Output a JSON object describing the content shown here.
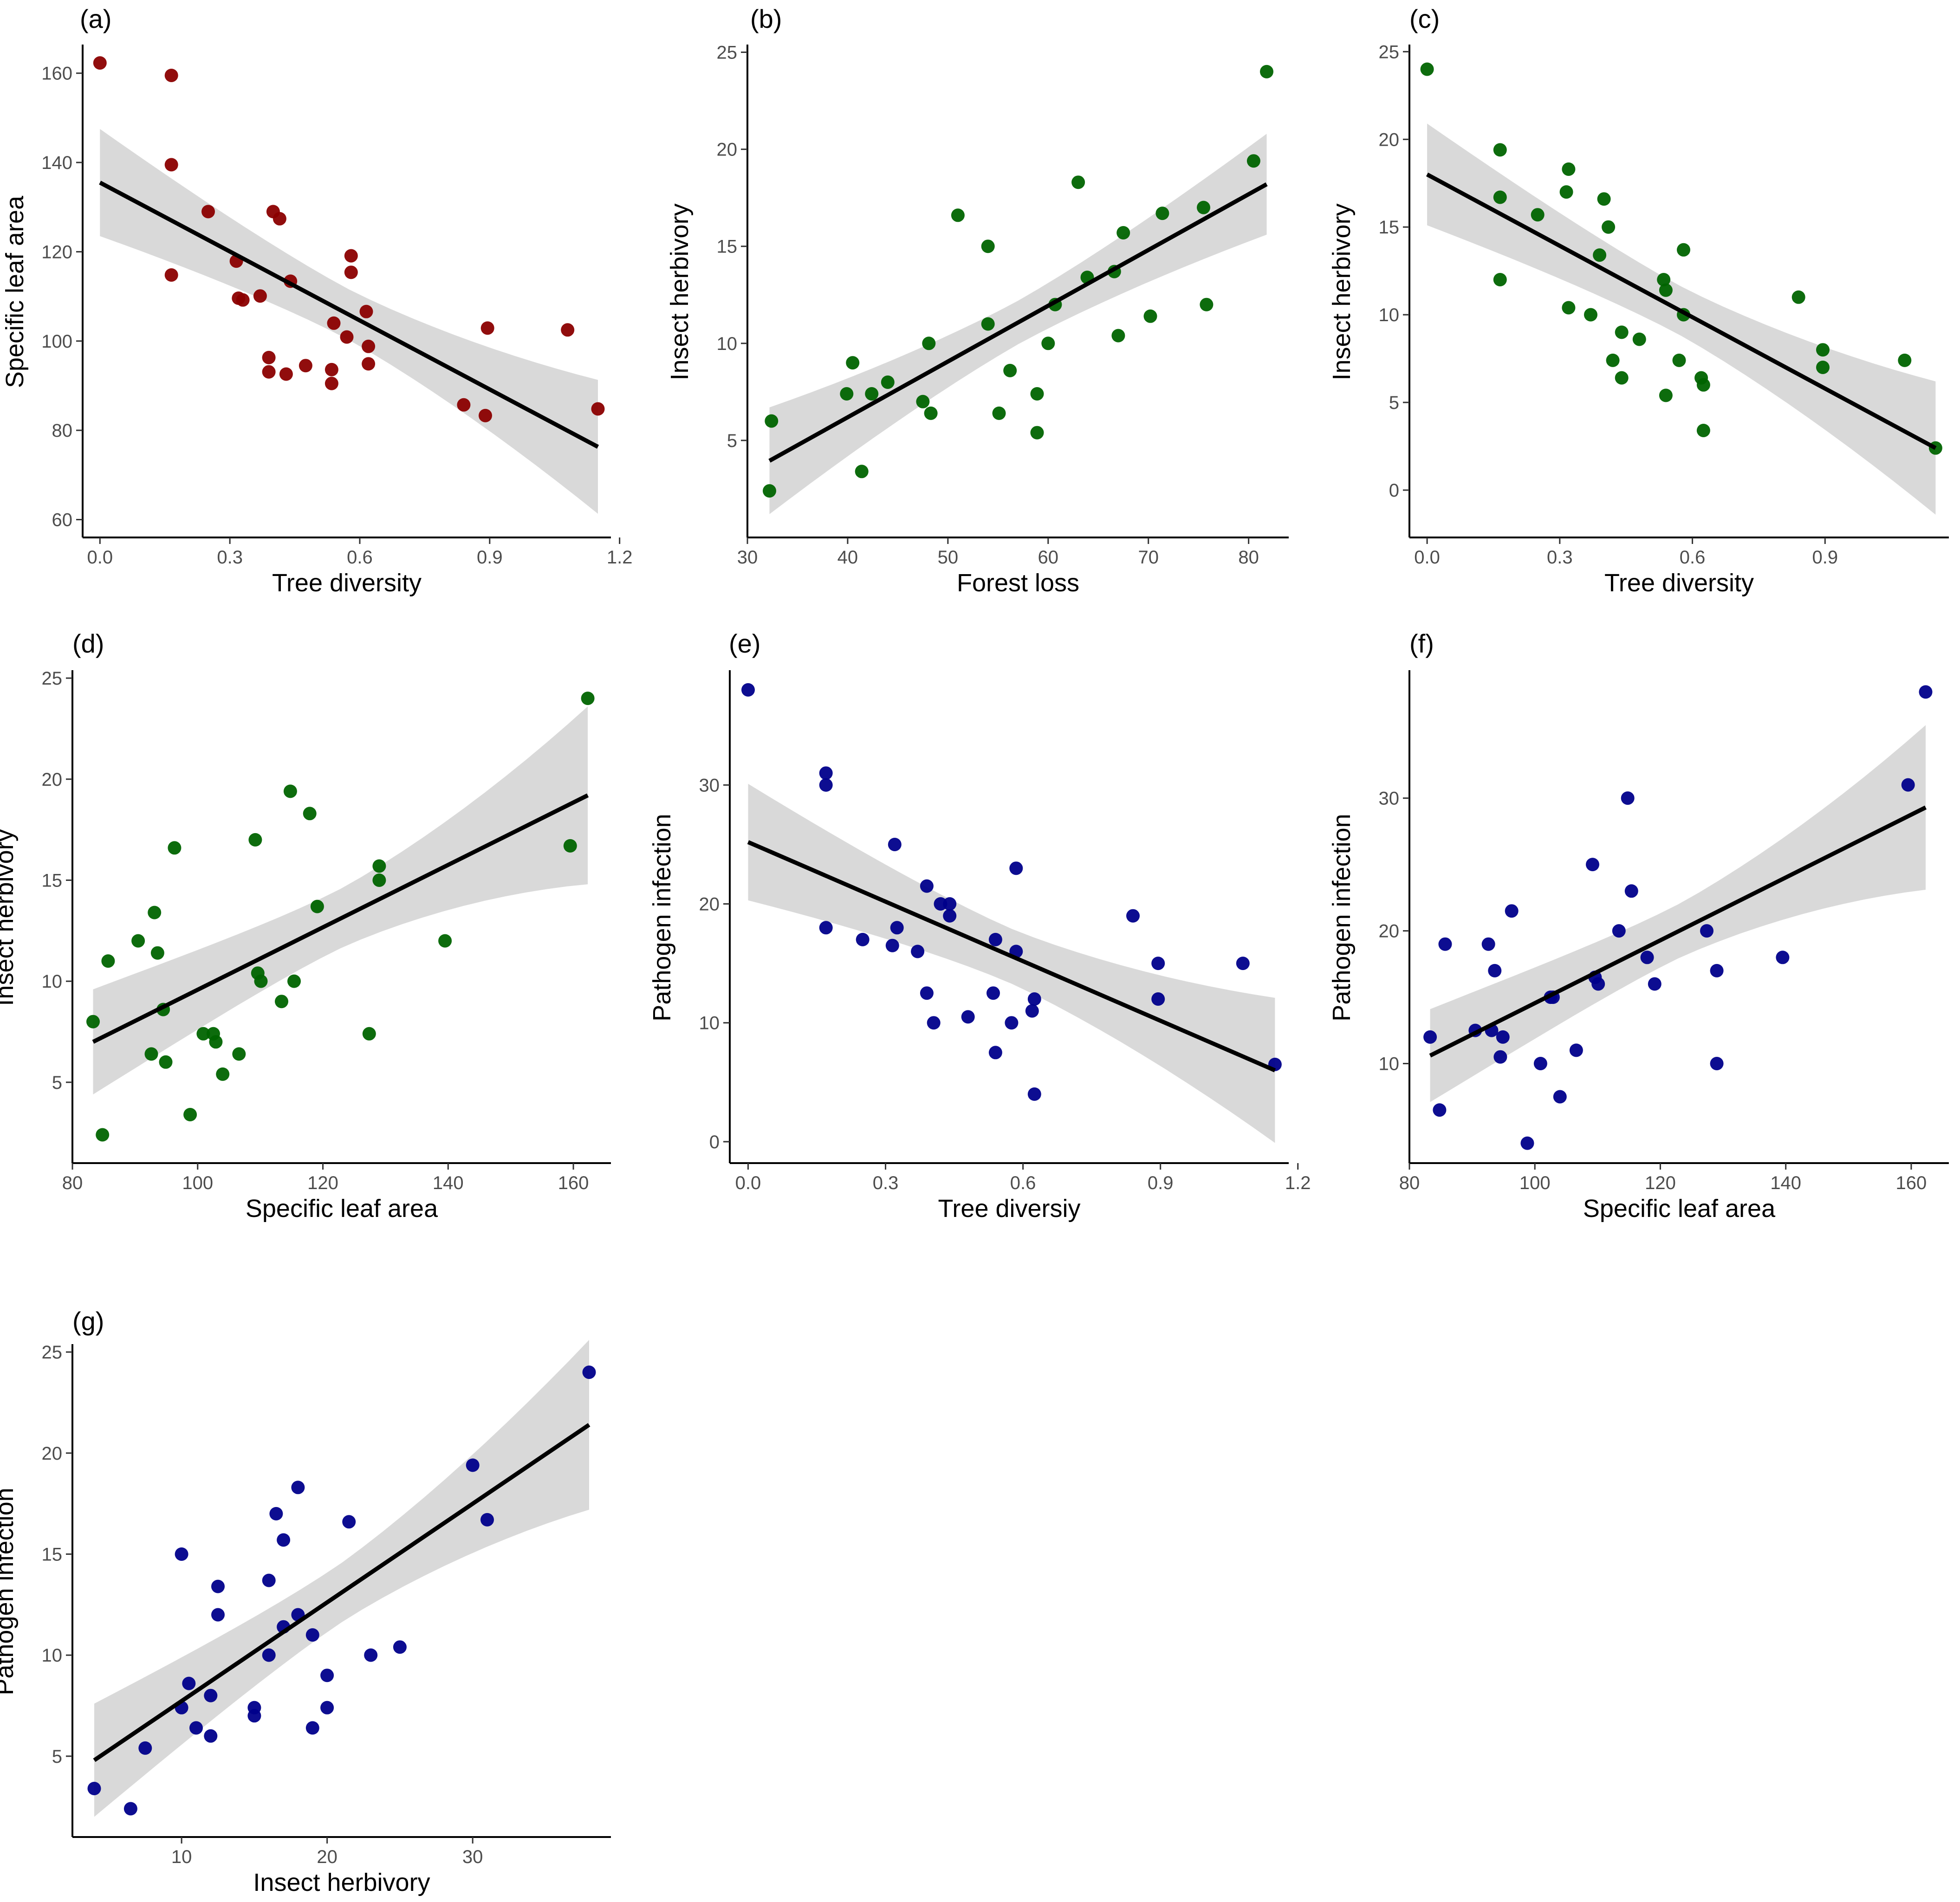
{
  "figure": {
    "ci_color": "#d9d9d9",
    "line_color": "#000000"
  },
  "chart_data": [
    {
      "id": "a",
      "type": "scatter",
      "label": "(a)",
      "xlabel": "Tree diversity",
      "ylabel": "Specific leaf area",
      "xlim": [
        -0.04,
        1.18
      ],
      "ylim": [
        56,
        166
      ],
      "xticks": [
        0.0,
        0.3,
        0.6,
        0.9,
        1.2
      ],
      "xtick_labels": [
        "0.0",
        "0.3",
        "0.6",
        "0.9",
        "1.2"
      ],
      "yticks": [
        60,
        80,
        100,
        120,
        140,
        160
      ],
      "ytick_labels": [
        "60",
        "80",
        "100",
        "120",
        "140",
        "160"
      ],
      "point_color": "#8b0000",
      "points": [
        [
          0.0,
          162.3
        ],
        [
          0.165,
          159.5
        ],
        [
          0.165,
          139.5
        ],
        [
          0.165,
          114.8
        ],
        [
          0.25,
          129.0
        ],
        [
          0.315,
          117.9
        ],
        [
          0.32,
          109.6
        ],
        [
          0.33,
          109.2
        ],
        [
          0.37,
          110.1
        ],
        [
          0.39,
          93.1
        ],
        [
          0.39,
          96.3
        ],
        [
          0.4,
          129.0
        ],
        [
          0.415,
          127.4
        ],
        [
          0.43,
          92.6
        ],
        [
          0.44,
          113.4
        ],
        [
          0.475,
          94.5
        ],
        [
          0.535,
          90.5
        ],
        [
          0.535,
          93.6
        ],
        [
          0.54,
          104.0
        ],
        [
          0.57,
          100.9
        ],
        [
          0.58,
          119.1
        ],
        [
          0.58,
          115.4
        ],
        [
          0.615,
          106.6
        ],
        [
          0.62,
          94.9
        ],
        [
          0.62,
          98.8
        ],
        [
          0.84,
          85.7
        ],
        [
          0.89,
          83.3
        ],
        [
          0.895,
          102.9
        ],
        [
          1.08,
          102.5
        ],
        [
          1.15,
          84.8
        ]
      ],
      "fit": {
        "x": [
          0.0,
          1.15
        ],
        "y": [
          135.5,
          76.3
        ],
        "ci_lower": [
          123.5,
          61.3
        ],
        "ci_upper": [
          147.5,
          91.3
        ]
      }
    },
    {
      "id": "b",
      "type": "scatter",
      "label": "(b)",
      "xlabel": "Forest loss",
      "ylabel": "Insect herbivory",
      "xlim": [
        30,
        84
      ],
      "ylim": [
        0,
        25.3
      ],
      "xticks": [
        30,
        40,
        50,
        60,
        70,
        80
      ],
      "xtick_labels": [
        "30",
        "40",
        "50",
        "60",
        "70",
        "80"
      ],
      "yticks": [
        5,
        10,
        15,
        20,
        25
      ],
      "ytick_labels": [
        "5",
        "10",
        "15",
        "20",
        "25"
      ],
      "point_color": "#006400",
      "points": [
        [
          32.2,
          2.4
        ],
        [
          32.4,
          6.0
        ],
        [
          39.9,
          7.4
        ],
        [
          40.5,
          9.0
        ],
        [
          41.4,
          3.4
        ],
        [
          42.4,
          7.4
        ],
        [
          44.0,
          8.0
        ],
        [
          47.5,
          7.0
        ],
        [
          48.1,
          10.0
        ],
        [
          48.3,
          6.4
        ],
        [
          51.0,
          16.6
        ],
        [
          54.0,
          15.0
        ],
        [
          54.0,
          11.0
        ],
        [
          55.1,
          6.4
        ],
        [
          56.2,
          8.6
        ],
        [
          58.9,
          7.4
        ],
        [
          58.9,
          5.4
        ],
        [
          60.0,
          10.0
        ],
        [
          60.7,
          12.0
        ],
        [
          63.0,
          18.3
        ],
        [
          63.9,
          13.4
        ],
        [
          66.6,
          13.7
        ],
        [
          67.0,
          10.4
        ],
        [
          67.5,
          15.7
        ],
        [
          70.2,
          11.4
        ],
        [
          71.4,
          16.7
        ],
        [
          75.5,
          17.0
        ],
        [
          75.8,
          12.0
        ],
        [
          80.5,
          19.4
        ],
        [
          81.8,
          24.0
        ]
      ],
      "fit": {
        "x": [
          32.2,
          81.8
        ],
        "y": [
          3.95,
          18.2
        ],
        "ci_lower": [
          1.2,
          15.6
        ],
        "ci_upper": [
          6.7,
          20.8
        ]
      }
    },
    {
      "id": "c",
      "type": "scatter",
      "label": "(c)",
      "xlabel": "Tree diversity",
      "ylabel": "Insect herbivory",
      "xlim": [
        -0.04,
        1.18
      ],
      "ylim": [
        -2.7,
        25.3
      ],
      "xticks": [
        0.0,
        0.3,
        0.6,
        0.9
      ],
      "xtick_labels": [
        "0.0",
        "0.3",
        "0.6",
        "0.9"
      ],
      "yticks": [
        0,
        5,
        10,
        15,
        20,
        25
      ],
      "ytick_labels": [
        "0",
        "5",
        "10",
        "15",
        "20",
        "25"
      ],
      "point_color": "#006400",
      "points": [
        [
          0.0,
          24.0
        ],
        [
          0.165,
          19.4
        ],
        [
          0.165,
          16.7
        ],
        [
          0.165,
          12.0
        ],
        [
          0.25,
          15.7
        ],
        [
          0.315,
          17.0
        ],
        [
          0.32,
          18.3
        ],
        [
          0.32,
          10.4
        ],
        [
          0.37,
          10.0
        ],
        [
          0.39,
          13.4
        ],
        [
          0.4,
          16.6
        ],
        [
          0.41,
          15.0
        ],
        [
          0.42,
          7.4
        ],
        [
          0.44,
          9.0
        ],
        [
          0.44,
          6.4
        ],
        [
          0.48,
          8.6
        ],
        [
          0.535,
          12.0
        ],
        [
          0.54,
          11.4
        ],
        [
          0.54,
          5.4
        ],
        [
          0.57,
          7.4
        ],
        [
          0.58,
          13.7
        ],
        [
          0.58,
          10.0
        ],
        [
          0.62,
          6.4
        ],
        [
          0.625,
          6.0
        ],
        [
          0.625,
          3.4
        ],
        [
          0.84,
          11.0
        ],
        [
          0.895,
          8.0
        ],
        [
          0.895,
          7.0
        ],
        [
          1.08,
          7.4
        ],
        [
          1.15,
          2.4
        ]
      ],
      "fit": {
        "x": [
          0.0,
          1.15
        ],
        "y": [
          18.0,
          2.4
        ],
        "ci_lower": [
          15.1,
          -1.4
        ],
        "ci_upper": [
          20.9,
          6.2
        ]
      }
    },
    {
      "id": "d",
      "type": "scatter",
      "label": "(d)",
      "xlabel": "Specific leaf area",
      "ylabel": "Insect herbivory",
      "xlim": [
        80,
        166
      ],
      "ylim": [
        1.0,
        25.3
      ],
      "xticks": [
        80,
        100,
        120,
        140,
        160
      ],
      "xtick_labels": [
        "80",
        "100",
        "120",
        "140",
        "160"
      ],
      "yticks": [
        5,
        10,
        15,
        20,
        25
      ],
      "ytick_labels": [
        "5",
        "10",
        "15",
        "20",
        "25"
      ],
      "point_color": "#006400",
      "points": [
        [
          83.3,
          8.0
        ],
        [
          84.8,
          2.4
        ],
        [
          85.7,
          11.0
        ],
        [
          90.5,
          12.0
        ],
        [
          92.6,
          6.4
        ],
        [
          93.1,
          13.4
        ],
        [
          93.6,
          11.4
        ],
        [
          94.5,
          8.6
        ],
        [
          94.9,
          6.0
        ],
        [
          96.3,
          16.6
        ],
        [
          98.8,
          3.4
        ],
        [
          100.9,
          7.4
        ],
        [
          102.5,
          7.4
        ],
        [
          102.9,
          7.0
        ],
        [
          104.0,
          5.4
        ],
        [
          106.6,
          6.4
        ],
        [
          109.2,
          17.0
        ],
        [
          109.6,
          10.4
        ],
        [
          110.1,
          10.0
        ],
        [
          113.4,
          9.0
        ],
        [
          114.8,
          19.4
        ],
        [
          115.4,
          10.0
        ],
        [
          117.9,
          18.3
        ],
        [
          119.1,
          13.7
        ],
        [
          127.4,
          7.4
        ],
        [
          129.0,
          15.7
        ],
        [
          129.0,
          15.0
        ],
        [
          139.5,
          12.0
        ],
        [
          159.5,
          16.7
        ],
        [
          162.3,
          24.0
        ]
      ],
      "fit": {
        "x": [
          83.3,
          162.3
        ],
        "y": [
          7.0,
          19.2
        ],
        "ci_lower": [
          4.4,
          14.8
        ],
        "ci_upper": [
          9.6,
          23.6
        ]
      }
    },
    {
      "id": "e",
      "type": "scatter",
      "label": "(e)",
      "xlabel": "Tree diversiy",
      "ylabel": "Pathogen infection",
      "xlim": [
        -0.04,
        1.18
      ],
      "ylim": [
        -1.8,
        39.5
      ],
      "xticks": [
        0.0,
        0.3,
        0.6,
        0.9,
        1.2
      ],
      "xtick_labels": [
        "0.0",
        "0.3",
        "0.6",
        "0.9",
        "1.2"
      ],
      "yticks": [
        0,
        10,
        20,
        30
      ],
      "ytick_labels": [
        "0",
        "10",
        "20",
        "30"
      ],
      "point_color": "#00008b",
      "points": [
        [
          0.0,
          38.0
        ],
        [
          0.17,
          31.0
        ],
        [
          0.17,
          30.0
        ],
        [
          0.17,
          18.0
        ],
        [
          0.25,
          17.0
        ],
        [
          0.315,
          16.5
        ],
        [
          0.32,
          25.0
        ],
        [
          0.325,
          18.0
        ],
        [
          0.37,
          16.0
        ],
        [
          0.39,
          21.5
        ],
        [
          0.39,
          12.5
        ],
        [
          0.405,
          10.0
        ],
        [
          0.42,
          20.0
        ],
        [
          0.44,
          20.0
        ],
        [
          0.44,
          19.0
        ],
        [
          0.48,
          10.5
        ],
        [
          0.535,
          12.5
        ],
        [
          0.54,
          17.0
        ],
        [
          0.54,
          7.5
        ],
        [
          0.575,
          10.0
        ],
        [
          0.585,
          16.0
        ],
        [
          0.585,
          23.0
        ],
        [
          0.62,
          11.0
        ],
        [
          0.625,
          12.0
        ],
        [
          0.625,
          4.0
        ],
        [
          0.84,
          19.0
        ],
        [
          0.895,
          15.0
        ],
        [
          0.895,
          12.0
        ],
        [
          1.08,
          15.0
        ],
        [
          1.15,
          6.5
        ]
      ],
      "fit": {
        "x": [
          0.0,
          1.15
        ],
        "y": [
          25.2,
          6.0
        ],
        "ci_lower": [
          20.3,
          -0.1
        ],
        "ci_upper": [
          30.1,
          12.1
        ]
      }
    },
    {
      "id": "f",
      "type": "scatter",
      "label": "(f)",
      "xlabel": "Specific leaf area",
      "ylabel": "Pathogen infection",
      "xlim": [
        80,
        166
      ],
      "ylim": [
        2.5,
        39.5
      ],
      "xticks": [
        80,
        100,
        120,
        140,
        160
      ],
      "xtick_labels": [
        "80",
        "100",
        "120",
        "140",
        "160"
      ],
      "yticks": [
        10,
        20,
        30
      ],
      "ytick_labels": [
        "10",
        "20",
        "30"
      ],
      "point_color": "#00008b",
      "points": [
        [
          83.3,
          12.0
        ],
        [
          84.8,
          6.5
        ],
        [
          85.7,
          19.0
        ],
        [
          90.5,
          12.5
        ],
        [
          92.6,
          19.0
        ],
        [
          93.1,
          12.5
        ],
        [
          93.6,
          17.0
        ],
        [
          94.5,
          10.5
        ],
        [
          94.9,
          12.0
        ],
        [
          96.3,
          21.5
        ],
        [
          98.8,
          4.0
        ],
        [
          100.9,
          10.0
        ],
        [
          102.5,
          15.0
        ],
        [
          102.9,
          15.0
        ],
        [
          104.0,
          7.5
        ],
        [
          106.6,
          11.0
        ],
        [
          109.2,
          25.0
        ],
        [
          109.6,
          16.5
        ],
        [
          110.1,
          16.0
        ],
        [
          113.4,
          20.0
        ],
        [
          114.8,
          30.0
        ],
        [
          115.4,
          23.0
        ],
        [
          117.9,
          18.0
        ],
        [
          119.1,
          16.0
        ],
        [
          127.4,
          20.0
        ],
        [
          129.0,
          17.0
        ],
        [
          129.0,
          10.0
        ],
        [
          139.5,
          18.0
        ],
        [
          159.5,
          31.0
        ],
        [
          162.3,
          38.0
        ]
      ],
      "fit": {
        "x": [
          83.3,
          162.3
        ],
        "y": [
          10.6,
          29.3
        ],
        "ci_lower": [
          7.1,
          23.1
        ],
        "ci_upper": [
          14.1,
          35.5
        ]
      }
    },
    {
      "id": "g",
      "type": "scatter",
      "label": "(g)",
      "xlabel": "Insect herbivory",
      "ylabel": "Pathogen infection",
      "xlim": [
        2.5,
        39.5
      ],
      "ylim": [
        1.0,
        25.3
      ],
      "xticks": [
        10,
        20,
        30
      ],
      "xtick_labels": [
        "10",
        "20",
        "30"
      ],
      "yticks": [
        5,
        10,
        15,
        20,
        25
      ],
      "ytick_labels": [
        "5",
        "10",
        "15",
        "20",
        "25"
      ],
      "point_color": "#00008b",
      "points": [
        [
          4.0,
          3.4
        ],
        [
          6.5,
          2.4
        ],
        [
          7.5,
          5.4
        ],
        [
          10.0,
          15.0
        ],
        [
          10.0,
          7.4
        ],
        [
          10.5,
          8.6
        ],
        [
          11.0,
          6.4
        ],
        [
          12.0,
          8.0
        ],
        [
          12.0,
          6.0
        ],
        [
          12.5,
          13.4
        ],
        [
          12.5,
          12.0
        ],
        [
          15.0,
          7.4
        ],
        [
          15.0,
          7.0
        ],
        [
          16.0,
          13.7
        ],
        [
          16.0,
          10.0
        ],
        [
          16.5,
          17.0
        ],
        [
          17.0,
          15.7
        ],
        [
          17.0,
          11.4
        ],
        [
          18.0,
          18.3
        ],
        [
          18.0,
          12.0
        ],
        [
          19.0,
          11.0
        ],
        [
          19.0,
          6.4
        ],
        [
          20.0,
          9.0
        ],
        [
          20.0,
          7.4
        ],
        [
          21.5,
          16.6
        ],
        [
          23.0,
          10.0
        ],
        [
          25.0,
          10.4
        ],
        [
          30.0,
          19.4
        ],
        [
          31.0,
          16.7
        ],
        [
          38.0,
          24.0
        ]
      ],
      "fit": {
        "x": [
          4.0,
          38.0
        ],
        "y": [
          4.8,
          21.4
        ],
        "ci_lower": [
          2.0,
          17.2
        ],
        "ci_upper": [
          7.6,
          25.6
        ]
      }
    }
  ]
}
